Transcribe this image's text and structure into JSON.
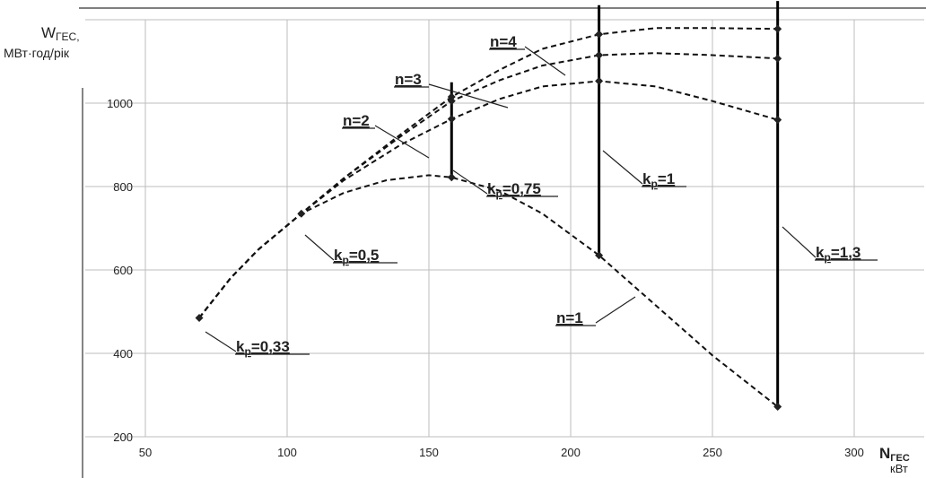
{
  "chart_data": {
    "type": "line",
    "ylabel_main": "W",
    "ylabel_sub": "ГЕС,",
    "ylabel_unit": "МВт·год/рік",
    "xlabel_main": "N",
    "xlabel_sub": "ГЕС",
    "xlabel_unit": "кВт",
    "xlim": [
      50,
      300
    ],
    "ylim": [
      200,
      1200
    ],
    "xticks": [
      50,
      100,
      150,
      200,
      250,
      300
    ],
    "yticks": [
      200,
      400,
      600,
      800,
      1000
    ],
    "grid": true,
    "series": [
      {
        "name": "n=1",
        "x": [
          69,
          80,
          90,
          105,
          120,
          135,
          150,
          158,
          175,
          190,
          210,
          230,
          250,
          273
        ],
        "y": [
          485,
          580,
          650,
          735,
          785,
          815,
          827,
          822,
          790,
          735,
          635,
          515,
          395,
          272
        ]
      },
      {
        "name": "n=2",
        "x": [
          69,
          80,
          90,
          105,
          120,
          140,
          158,
          175,
          190,
          210,
          230,
          250,
          273
        ],
        "y": [
          485,
          580,
          650,
          735,
          815,
          900,
          962,
          1010,
          1040,
          1053,
          1040,
          1005,
          960
        ]
      },
      {
        "name": "n=3",
        "x": [
          69,
          80,
          90,
          105,
          120,
          140,
          158,
          175,
          190,
          210,
          230,
          250,
          273
        ],
        "y": [
          485,
          580,
          650,
          735,
          820,
          920,
          1005,
          1055,
          1090,
          1115,
          1120,
          1115,
          1107
        ]
      },
      {
        "name": "n=4",
        "x": [
          69,
          80,
          90,
          105,
          120,
          140,
          158,
          175,
          190,
          210,
          230,
          250,
          273
        ],
        "y": [
          485,
          580,
          650,
          735,
          820,
          925,
          1015,
          1080,
          1130,
          1165,
          1180,
          1180,
          1178
        ]
      }
    ],
    "verticals": [
      {
        "label_main": "k",
        "label_sub": "р",
        "label_tail": "=0,75",
        "x": 158,
        "y_top": 1050,
        "y_bottom": 822
      },
      {
        "label_main": "k",
        "label_sub": "р",
        "label_tail": "=1",
        "x": 210,
        "y_top": 1235,
        "y_bottom": 635
      },
      {
        "label_main": "k",
        "label_sub": "р",
        "label_tail": "=1,3",
        "x": 273,
        "y_top": 1245,
        "y_bottom": 272
      }
    ],
    "points": [
      {
        "x": 69,
        "y": 485
      },
      {
        "x": 105,
        "y": 735
      },
      {
        "x": 158,
        "y": 822
      },
      {
        "x": 158,
        "y": 962
      },
      {
        "x": 158,
        "y": 1005
      },
      {
        "x": 158,
        "y": 1015
      },
      {
        "x": 210,
        "y": 635
      },
      {
        "x": 210,
        "y": 1053
      },
      {
        "x": 210,
        "y": 1115
      },
      {
        "x": 210,
        "y": 1165
      },
      {
        "x": 273,
        "y": 272
      },
      {
        "x": 273,
        "y": 960
      },
      {
        "x": 273,
        "y": 1107
      },
      {
        "x": 273,
        "y": 1178
      }
    ],
    "annotations": [
      {
        "text_main": "k",
        "text_sub": "р",
        "text_tail": "=0,33",
        "anchor_x": 69,
        "anchor_y": 485
      },
      {
        "text_main": "k",
        "text_sub": "р",
        "text_tail": "=0,5",
        "anchor_x": 105,
        "anchor_y": 735
      },
      {
        "text_main": "n=1",
        "anchor_x": 222,
        "anchor_y": 578
      },
      {
        "text_main": "n=2",
        "anchor_x": 148,
        "anchor_y": 930
      },
      {
        "text_main": "n=3",
        "anchor_x": 180,
        "anchor_y": 1075
      },
      {
        "text_main": "n=4",
        "anchor_x": 198,
        "anchor_y": 1163
      }
    ]
  }
}
